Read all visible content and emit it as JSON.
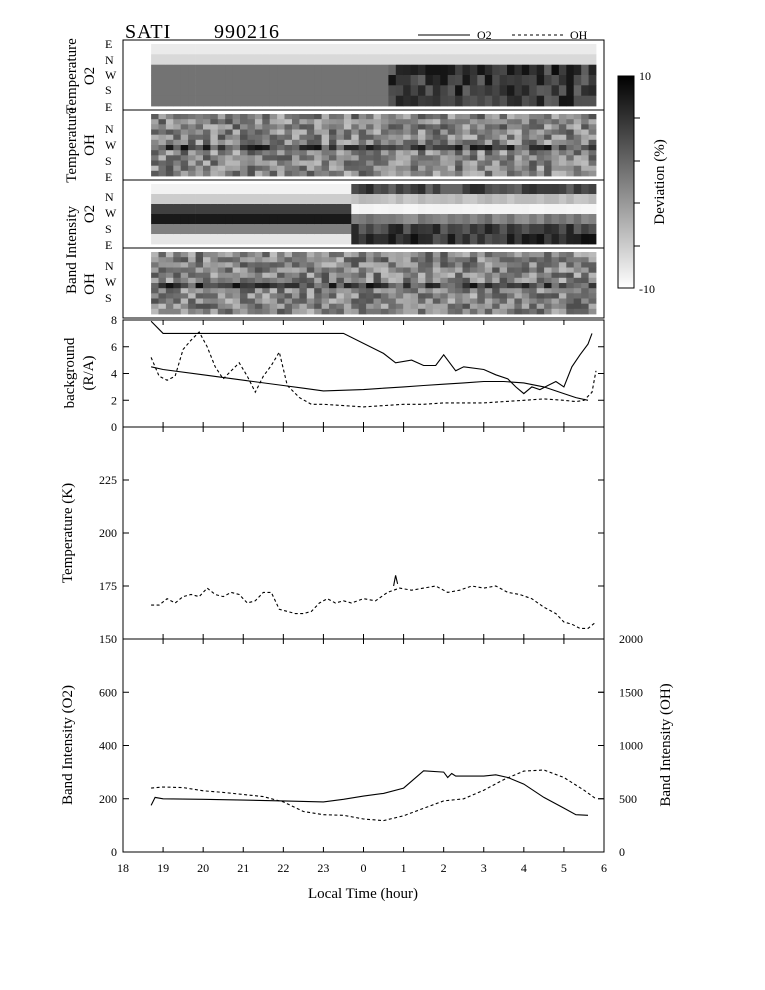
{
  "header": {
    "title_left": "SATI",
    "title_right": "990216",
    "legend": [
      {
        "label": "O2",
        "style": "solid"
      },
      {
        "label": "OH",
        "style": "dashed"
      }
    ]
  },
  "colorbar": {
    "label": "Deviation  (%)",
    "ticks": [
      "10",
      "-10"
    ]
  },
  "panel_labels": {
    "o2_temperature": [
      "Temperature",
      "O2"
    ],
    "oh_temperature": [
      "Temperature",
      "OH"
    ],
    "o2_intensity": [
      "Band  Intensity",
      "O2"
    ],
    "oh_intensity": [
      "Band  Intensity",
      "OH"
    ]
  },
  "direction_labels": [
    "E",
    "N",
    "W",
    "S",
    "E"
  ],
  "chart_data": [
    {
      "type": "heatmap",
      "name": "O2 temperature deviation",
      "ylabels": [
        "E",
        "N",
        "W",
        "S",
        "E"
      ],
      "zrange": [
        -10,
        10
      ],
      "x_coverage": [
        18.7,
        5.8
      ]
    },
    {
      "type": "heatmap",
      "name": "OH temperature deviation",
      "ylabels": [
        "N",
        "W",
        "S",
        "E"
      ],
      "zrange": [
        -10,
        10
      ],
      "x_coverage": [
        18.7,
        5.8
      ]
    },
    {
      "type": "heatmap",
      "name": "O2 band intensity deviation",
      "ylabels": [
        "N",
        "W",
        "S",
        "E"
      ],
      "zrange": [
        -10,
        10
      ],
      "x_coverage": [
        18.7,
        5.8
      ]
    },
    {
      "type": "heatmap",
      "name": "OH band intensity deviation",
      "ylabels": [
        "N",
        "W",
        "S"
      ],
      "zrange": [
        -10,
        10
      ],
      "x_coverage": [
        18.7,
        5.8
      ]
    },
    {
      "type": "line",
      "name": "background",
      "ylabel": "background\n(R/A)",
      "ylim": [
        0,
        8
      ],
      "yticks": [
        "0",
        "2",
        "4",
        "6",
        "8"
      ],
      "series": [
        {
          "name": "O2 upper",
          "style": "solid",
          "x": [
            18.7,
            19,
            20,
            21,
            22,
            23,
            23.5,
            0.5,
            0.8,
            1.2,
            1.5,
            1.8,
            2,
            2.3,
            2.5,
            3,
            3.3,
            3.6,
            3.8,
            4,
            4.2,
            4.4,
            4.6,
            4.8,
            5,
            5.2,
            5.4,
            5.6,
            5.7
          ],
          "y": [
            7.9,
            7.0,
            7.0,
            7.0,
            7.0,
            7.0,
            7.0,
            5.5,
            4.8,
            5.0,
            4.6,
            4.6,
            5.4,
            4.2,
            4.5,
            4.3,
            3.9,
            3.6,
            3.0,
            2.5,
            3.0,
            2.8,
            3.1,
            3.4,
            3.0,
            4.5,
            5.4,
            6.2,
            7.0
          ]
        },
        {
          "name": "O2 lower",
          "style": "solid",
          "x": [
            18.7,
            19,
            20,
            21,
            22,
            22.5,
            23,
            0,
            0.5,
            1,
            1.5,
            2,
            2.5,
            3,
            3.5,
            4,
            4.5,
            5,
            5.3,
            5.6
          ],
          "y": [
            4.5,
            4.3,
            3.9,
            3.5,
            3.1,
            2.9,
            2.7,
            2.8,
            2.9,
            3.0,
            3.1,
            3.2,
            3.3,
            3.4,
            3.4,
            3.3,
            3.0,
            2.5,
            2.2,
            2.0
          ]
        },
        {
          "name": "OH",
          "style": "dashed",
          "x": [
            18.7,
            18.9,
            19.1,
            19.3,
            19.5,
            19.7,
            19.9,
            20.1,
            20.3,
            20.5,
            20.7,
            20.9,
            21.1,
            21.3,
            21.5,
            21.7,
            21.9,
            22.1,
            22.4,
            22.7,
            23,
            23.5,
            0,
            0.5,
            1,
            1.5,
            2,
            2.5,
            3,
            3.5,
            4,
            4.5,
            5,
            5.3,
            5.5,
            5.7,
            5.8
          ],
          "y": [
            5.2,
            3.8,
            3.5,
            3.8,
            5.8,
            6.5,
            7.1,
            6.0,
            4.5,
            3.6,
            4.2,
            4.8,
            3.8,
            2.6,
            3.8,
            4.6,
            5.6,
            3.1,
            2.2,
            1.7,
            1.7,
            1.6,
            1.5,
            1.6,
            1.7,
            1.7,
            1.8,
            1.8,
            1.8,
            1.9,
            2.0,
            2.1,
            2.0,
            1.9,
            2.0,
            2.6,
            4.2
          ]
        }
      ]
    },
    {
      "type": "line",
      "name": "temperature",
      "ylabel": "Temperature  (K)",
      "ylim": [
        150,
        250
      ],
      "yticks": [
        "150",
        "175",
        "200",
        "225"
      ],
      "series": [
        {
          "name": "O2",
          "style": "solid",
          "x": [
            0.75,
            0.8,
            0.85
          ],
          "y": [
            175,
            180,
            176
          ]
        },
        {
          "name": "OH",
          "style": "dashed",
          "x": [
            18.7,
            18.9,
            19.1,
            19.3,
            19.5,
            19.7,
            19.9,
            20.1,
            20.3,
            20.5,
            20.7,
            20.9,
            21.1,
            21.3,
            21.5,
            21.7,
            21.9,
            22.1,
            22.3,
            22.5,
            22.7,
            22.9,
            23.1,
            23.3,
            23.5,
            23.7,
            0,
            0.3,
            0.6,
            0.9,
            1.2,
            1.5,
            1.8,
            2.1,
            2.4,
            2.7,
            3,
            3.3,
            3.6,
            3.9,
            4.2,
            4.5,
            4.8,
            5,
            5.2,
            5.4,
            5.6,
            5.8
          ],
          "y": [
            166,
            166,
            169,
            167,
            170,
            171,
            170,
            174,
            171,
            170,
            172,
            171,
            167,
            168,
            172,
            172,
            164,
            163,
            162,
            162,
            163,
            167,
            169,
            167,
            168,
            167,
            169,
            168,
            172,
            174,
            173,
            174,
            175,
            172,
            173,
            175,
            174,
            175,
            172,
            171,
            169,
            165,
            162,
            158,
            157,
            155,
            155,
            158
          ]
        }
      ]
    },
    {
      "type": "line",
      "name": "band intensity",
      "ylabel": "Band  Intensity  (O2)",
      "y2label": "Band  Intensity  (OH)",
      "ylim": [
        0,
        800
      ],
      "y2lim": [
        0,
        2000
      ],
      "yticks": [
        "0",
        "200",
        "400",
        "600"
      ],
      "y2ticks": [
        "0",
        "500",
        "1000",
        "1500",
        "2000"
      ],
      "xlabel": "Local  Time  (hour)",
      "xticks": [
        "18",
        "19",
        "20",
        "21",
        "22",
        "23",
        "0",
        "1",
        "2",
        "3",
        "4",
        "5",
        "6"
      ],
      "series": [
        {
          "name": "O2",
          "style": "solid",
          "axis": "left",
          "x": [
            18.7,
            18.8,
            19,
            20,
            21,
            22,
            22.5,
            23,
            23.5,
            0,
            0.5,
            1,
            1.5,
            2,
            2.1,
            2.2,
            2.3,
            3,
            3.3,
            3.6,
            4,
            4.5,
            5,
            5.3,
            5.6
          ],
          "y": [
            175,
            205,
            200,
            198,
            195,
            192,
            190,
            188,
            198,
            210,
            220,
            240,
            305,
            300,
            280,
            295,
            285,
            285,
            290,
            280,
            255,
            205,
            165,
            140,
            138
          ]
        },
        {
          "name": "OH",
          "style": "dashed",
          "axis": "right",
          "x": [
            18.7,
            19,
            19.5,
            20,
            20.5,
            21,
            21.5,
            22,
            22.5,
            23,
            23.5,
            0,
            0.5,
            1,
            1.5,
            2,
            2.5,
            3,
            3.5,
            4,
            4.5,
            5,
            5.5,
            5.8
          ],
          "y": [
            600,
            610,
            605,
            575,
            560,
            540,
            520,
            470,
            380,
            350,
            345,
            310,
            295,
            340,
            410,
            480,
            500,
            580,
            680,
            760,
            770,
            700,
            580,
            500
          ]
        }
      ]
    }
  ]
}
